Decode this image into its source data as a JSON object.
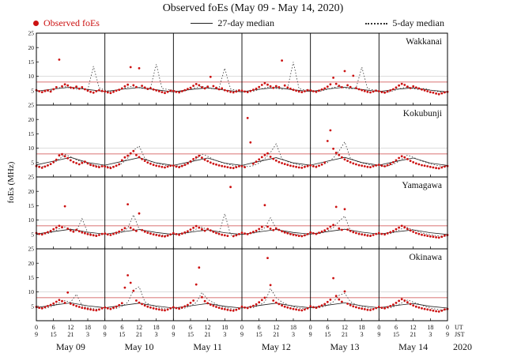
{
  "title": "Observed foEs (May 09 - May 14, 2020)",
  "ylabel": "foEs (MHz)",
  "year_label": "2020",
  "axis_right_labels": [
    "UT",
    "JST"
  ],
  "legend": {
    "observed": {
      "label": "Observed foEs",
      "color": "#cc1111"
    },
    "median27": {
      "label": "27-day median"
    },
    "median5": {
      "label": "5-day median"
    }
  },
  "chart_data": {
    "type": "scatter",
    "x_unit": "hours UT from May 09 2020 00:00",
    "x_range": [
      0,
      144
    ],
    "ylim": [
      0,
      25
    ],
    "y_ticks": [
      5,
      10,
      15,
      20,
      25
    ],
    "x_tick_step_hours": 6,
    "threshold_mhz": 8,
    "dot_color": "#cc1111",
    "grid_line_mhz": 10,
    "day_labels": [
      "May 09",
      "May 10",
      "May 11",
      "May 12",
      "May 13",
      "May 14"
    ],
    "ut_labels": [
      "0",
      "6",
      "12",
      "18",
      "0",
      "6",
      "12",
      "18",
      "0",
      "6",
      "12",
      "18",
      "0",
      "6",
      "12",
      "18",
      "0",
      "6",
      "12",
      "18",
      "0",
      "6",
      "12",
      "18",
      "0"
    ],
    "jst_labels": [
      "9",
      "15",
      "21",
      "3",
      "9",
      "15",
      "21",
      "3",
      "9",
      "15",
      "21",
      "3",
      "9",
      "15",
      "21",
      "3",
      "9",
      "15",
      "21",
      "3",
      "9",
      "15",
      "21",
      "3",
      "9"
    ],
    "stations": [
      {
        "name": "Wakkanai",
        "observed_step_hours": 1,
        "observed": [
          5.2,
          4.8,
          4.5,
          4.9,
          5.1,
          4.7,
          5.5,
          6.2,
          15.8,
          6.5,
          7.2,
          6.8,
          6.1,
          5.9,
          6.4,
          5.7,
          6.2,
          5.5,
          5.0,
          4.6,
          4.3,
          4.8,
          5.2,
          4.9,
          4.7,
          4.4,
          4.2,
          4.6,
          5.0,
          5.3,
          5.8,
          6.5,
          7.1,
          13.2,
          6.9,
          6.3,
          12.8,
          6.7,
          6.1,
          5.6,
          5.9,
          5.4,
          5.1,
          4.8,
          4.5,
          4.2,
          4.6,
          5.0,
          4.9,
          4.6,
          4.4,
          4.8,
          5.2,
          5.6,
          6.0,
          6.7,
          7.3,
          6.9,
          6.2,
          5.8,
          6.4,
          9.8,
          6.6,
          6.0,
          5.5,
          5.8,
          5.2,
          4.9,
          4.6,
          4.4,
          4.7,
          5.1,
          5.0,
          4.7,
          4.5,
          4.9,
          5.3,
          5.7,
          6.3,
          7.0,
          7.6,
          7.1,
          6.5,
          6.0,
          6.6,
          6.2,
          15.5,
          6.8,
          6.1,
          5.7,
          5.3,
          5.0,
          4.7,
          4.5,
          4.8,
          5.2,
          5.1,
          4.8,
          4.6,
          5.0,
          5.4,
          5.8,
          6.4,
          7.2,
          9.5,
          7.4,
          6.7,
          6.2,
          11.8,
          6.9,
          6.3,
          10.2,
          5.9,
          5.5,
          5.2,
          4.9,
          4.6,
          4.4,
          4.7,
          5.0,
          4.8,
          4.5,
          4.3,
          4.7,
          5.1,
          5.5,
          6.1,
          6.8,
          7.4,
          7.0,
          6.4,
          5.9,
          6.5,
          6.1,
          5.8,
          5.4,
          5.1,
          4.8,
          4.5,
          4.3,
          4.0,
          3.8,
          4.1,
          4.4,
          4.6
        ],
        "median27_step_hours": 6,
        "median27": [
          4.8,
          5.6,
          6.2,
          5.4,
          4.7,
          5.5,
          6.1,
          5.3,
          4.6,
          5.4,
          6.0,
          5.2,
          4.6,
          5.5,
          6.1,
          5.3,
          4.7,
          5.6,
          6.2,
          5.4,
          4.7,
          5.5,
          6.0,
          5.2,
          4.6
        ],
        "median5_step_hours": 2,
        "median5": [
          5.0,
          4.6,
          4.8,
          5.4,
          6.0,
          6.4,
          5.8,
          5.5,
          5.9,
          5.3,
          13.5,
          6.0,
          5.2,
          4.8,
          5.0,
          5.6,
          6.2,
          6.6,
          6.0,
          5.7,
          6.1,
          14.2,
          5.8,
          5.4,
          5.1,
          4.7,
          4.9,
          5.5,
          6.1,
          6.5,
          5.9,
          5.6,
          6.0,
          12.8,
          5.6,
          5.2,
          5.0,
          4.6,
          4.8,
          5.4,
          6.0,
          6.4,
          5.8,
          5.5,
          5.9,
          15.0,
          5.7,
          5.3,
          5.1,
          4.7,
          4.9,
          5.5,
          6.1,
          6.5,
          5.9,
          5.6,
          6.0,
          13.2,
          5.7,
          5.3,
          4.9,
          4.5,
          4.7,
          5.3,
          5.9,
          6.3,
          5.7,
          5.4,
          5.8,
          5.2,
          4.8,
          4.4,
          4.6
        ]
      },
      {
        "name": "Kokubunji",
        "observed_step_hours": 1,
        "observed": [
          3.8,
          3.5,
          3.2,
          3.6,
          4.0,
          4.5,
          5.2,
          6.0,
          7.5,
          7.9,
          7.2,
          6.5,
          5.8,
          5.2,
          4.8,
          4.4,
          4.9,
          5.3,
          4.7,
          4.2,
          3.9,
          3.6,
          3.4,
          3.7,
          3.6,
          3.3,
          3.1,
          3.5,
          3.9,
          4.4,
          5.8,
          6.8,
          7.4,
          8.2,
          9.0,
          7.6,
          6.9,
          6.2,
          5.6,
          5.0,
          4.6,
          4.2,
          3.9,
          3.7,
          3.5,
          3.3,
          3.6,
          3.9,
          3.9,
          3.6,
          3.4,
          3.8,
          4.2,
          4.7,
          5.4,
          6.2,
          6.8,
          7.4,
          6.7,
          6.0,
          5.5,
          5.0,
          4.6,
          4.3,
          4.0,
          3.8,
          3.6,
          3.4,
          3.2,
          3.1,
          3.4,
          3.7,
          3.7,
          3.4,
          20.5,
          12.0,
          4.6,
          5.3,
          6.1,
          6.9,
          7.6,
          8.2,
          7.0,
          6.3,
          5.7,
          5.2,
          4.8,
          4.5,
          4.2,
          3.9,
          3.7,
          3.5,
          3.3,
          3.2,
          3.5,
          3.8,
          4.0,
          3.7,
          3.5,
          3.9,
          4.3,
          5.0,
          12.5,
          16.2,
          9.8,
          8.4,
          7.6,
          6.8,
          6.1,
          5.6,
          5.1,
          4.7,
          4.4,
          4.1,
          3.9,
          3.7,
          3.5,
          3.4,
          3.7,
          4.0,
          4.2,
          3.9,
          3.7,
          4.1,
          4.5,
          5.1,
          5.8,
          6.6,
          7.2,
          6.8,
          6.2,
          5.6,
          5.1,
          4.7,
          4.4,
          4.1,
          3.9,
          3.7,
          3.5,
          3.3,
          3.1,
          3.0,
          3.3,
          3.6,
          3.8
        ],
        "median27_step_hours": 6,
        "median27": [
          4.2,
          5.5,
          6.8,
          5.0,
          4.1,
          5.4,
          6.7,
          4.9,
          4.0,
          5.3,
          6.6,
          4.8,
          4.0,
          5.4,
          6.7,
          4.9,
          4.1,
          5.5,
          6.8,
          5.0,
          4.1,
          5.4,
          6.6,
          4.8,
          4.0
        ],
        "median5_step_hours": 2,
        "median5": [
          4.0,
          3.6,
          3.9,
          4.8,
          6.2,
          7.8,
          7.0,
          6.0,
          5.2,
          4.6,
          4.2,
          3.8,
          3.9,
          3.5,
          3.8,
          4.7,
          6.5,
          9.2,
          10.8,
          6.4,
          5.4,
          4.8,
          4.3,
          3.9,
          4.1,
          3.7,
          4.0,
          4.9,
          6.3,
          8.0,
          7.2,
          6.1,
          5.3,
          4.7,
          4.2,
          3.8,
          4.0,
          3.6,
          3.9,
          4.8,
          6.4,
          8.5,
          11.5,
          6.3,
          5.3,
          4.7,
          4.2,
          3.8,
          4.2,
          3.8,
          4.1,
          5.0,
          6.6,
          9.0,
          12.2,
          6.5,
          5.5,
          4.9,
          4.4,
          4.0,
          4.1,
          3.7,
          4.0,
          4.9,
          6.2,
          7.6,
          6.8,
          5.9,
          5.1,
          4.5,
          4.1,
          3.7,
          3.9
        ]
      },
      {
        "name": "Yamagawa",
        "observed_step_hours": 1,
        "observed": [
          5.5,
          5.2,
          5.0,
          5.4,
          5.8,
          6.2,
          6.8,
          7.4,
          8.0,
          7.5,
          14.8,
          7.0,
          6.4,
          6.0,
          6.6,
          6.1,
          5.7,
          5.4,
          5.1,
          4.9,
          4.7,
          4.5,
          4.8,
          5.2,
          5.3,
          5.0,
          4.8,
          5.2,
          5.6,
          6.0,
          6.6,
          7.2,
          15.5,
          7.3,
          6.7,
          6.2,
          12.3,
          6.5,
          6.0,
          5.6,
          5.3,
          5.0,
          4.8,
          4.6,
          4.4,
          4.3,
          4.6,
          5.0,
          5.4,
          5.1,
          4.9,
          5.3,
          5.7,
          6.1,
          6.7,
          7.3,
          7.9,
          7.4,
          6.8,
          6.3,
          6.9,
          6.4,
          5.9,
          5.5,
          5.2,
          4.9,
          4.7,
          4.5,
          21.5,
          4.4,
          4.7,
          5.1,
          5.6,
          5.3,
          5.1,
          5.5,
          5.9,
          6.3,
          6.9,
          7.6,
          15.2,
          7.7,
          7.0,
          6.5,
          7.1,
          6.6,
          6.1,
          5.7,
          5.4,
          5.1,
          4.9,
          4.7,
          4.5,
          4.4,
          4.7,
          5.1,
          5.7,
          5.4,
          5.2,
          5.6,
          6.0,
          6.4,
          7.0,
          7.7,
          8.3,
          14.6,
          7.1,
          6.6,
          13.8,
          6.7,
          6.2,
          5.8,
          5.5,
          5.2,
          5.0,
          4.8,
          4.6,
          4.5,
          4.8,
          5.2,
          5.5,
          5.2,
          5.0,
          5.4,
          5.8,
          6.2,
          6.8,
          7.4,
          8.0,
          7.5,
          6.9,
          6.4,
          5.9,
          5.5,
          5.2,
          4.9,
          4.7,
          4.5,
          4.3,
          4.2,
          4.0,
          3.9,
          4.2,
          4.6,
          4.8
        ],
        "median27_step_hours": 6,
        "median27": [
          5.2,
          6.0,
          6.8,
          5.8,
          5.1,
          5.9,
          6.7,
          5.7,
          5.0,
          5.8,
          6.6,
          5.6,
          5.0,
          5.9,
          6.7,
          5.7,
          5.1,
          6.0,
          6.8,
          5.8,
          5.1,
          5.9,
          6.6,
          5.6,
          5.0
        ],
        "median5_step_hours": 2,
        "median5": [
          5.4,
          5.0,
          5.3,
          6.0,
          7.0,
          7.6,
          6.8,
          6.2,
          10.5,
          5.6,
          5.0,
          4.7,
          5.2,
          4.8,
          5.1,
          5.8,
          7.2,
          11.8,
          6.9,
          6.1,
          5.5,
          5.1,
          4.8,
          4.5,
          5.3,
          4.9,
          5.2,
          5.9,
          6.9,
          7.5,
          6.7,
          6.0,
          5.4,
          12.2,
          4.9,
          4.6,
          5.5,
          5.1,
          5.4,
          6.1,
          7.3,
          10.8,
          7.0,
          6.2,
          5.6,
          5.2,
          4.9,
          4.6,
          5.6,
          5.2,
          5.5,
          6.2,
          7.4,
          9.6,
          11.4,
          6.3,
          5.7,
          5.3,
          5.0,
          4.7,
          5.4,
          5.0,
          5.3,
          6.0,
          7.0,
          7.4,
          6.6,
          5.9,
          5.3,
          4.9,
          4.6,
          4.3,
          4.5
        ]
      },
      {
        "name": "Okinawa",
        "observed_step_hours": 1,
        "observed": [
          4.8,
          4.5,
          4.3,
          4.7,
          5.1,
          5.5,
          6.0,
          6.6,
          7.2,
          6.8,
          6.2,
          9.8,
          5.9,
          5.5,
          5.1,
          4.8,
          4.5,
          4.3,
          4.1,
          3.9,
          3.7,
          3.6,
          3.9,
          4.3,
          4.6,
          4.3,
          4.1,
          4.5,
          4.9,
          5.4,
          6.1,
          11.5,
          15.8,
          13.2,
          10.4,
          7.0,
          6.3,
          5.8,
          5.3,
          4.9,
          4.6,
          4.3,
          4.1,
          3.9,
          3.7,
          3.6,
          3.9,
          4.3,
          4.7,
          4.4,
          4.2,
          4.6,
          5.0,
          5.5,
          6.2,
          7.0,
          12.6,
          18.5,
          8.2,
          6.8,
          6.1,
          5.6,
          5.2,
          4.8,
          4.5,
          4.2,
          4.0,
          3.8,
          3.6,
          3.5,
          3.8,
          4.2,
          4.9,
          4.6,
          4.4,
          4.8,
          5.2,
          5.7,
          6.4,
          7.2,
          8.0,
          21.8,
          12.4,
          7.0,
          6.3,
          5.8,
          5.3,
          4.9,
          4.6,
          4.3,
          4.1,
          3.9,
          3.7,
          3.6,
          3.9,
          4.3,
          5.0,
          4.7,
          4.5,
          4.9,
          5.3,
          5.8,
          6.5,
          7.3,
          14.8,
          8.6,
          7.4,
          6.6,
          10.2,
          5.9,
          5.4,
          5.0,
          4.7,
          4.4,
          4.2,
          4.0,
          3.8,
          3.7,
          4.0,
          4.4,
          4.8,
          4.5,
          4.3,
          4.7,
          5.1,
          5.6,
          6.2,
          6.9,
          7.5,
          7.0,
          6.4,
          5.8,
          5.3,
          4.9,
          4.6,
          4.3,
          4.1,
          3.9,
          3.7,
          3.5,
          3.3,
          3.2,
          3.5,
          3.9,
          4.1
        ],
        "median27_step_hours": 6,
        "median27": [
          4.6,
          5.4,
          6.2,
          5.2,
          4.5,
          5.3,
          6.1,
          5.1,
          4.4,
          5.2,
          6.0,
          5.0,
          4.4,
          5.3,
          6.1,
          5.1,
          4.5,
          5.4,
          6.2,
          5.2,
          4.5,
          5.3,
          6.0,
          5.0,
          4.4
        ],
        "median5_step_hours": 2,
        "median5": [
          4.6,
          4.2,
          4.5,
          5.2,
          6.2,
          7.0,
          6.4,
          9.2,
          5.2,
          4.6,
          4.2,
          3.9,
          4.4,
          4.0,
          4.3,
          5.0,
          6.4,
          10.6,
          11.8,
          6.6,
          5.4,
          4.8,
          4.3,
          4.0,
          4.5,
          4.1,
          4.4,
          5.1,
          6.3,
          9.8,
          7.4,
          6.3,
          5.3,
          4.7,
          4.2,
          3.9,
          4.7,
          4.3,
          4.6,
          5.3,
          6.5,
          11.2,
          8.0,
          6.5,
          5.5,
          4.9,
          4.4,
          4.1,
          4.8,
          4.4,
          4.7,
          5.4,
          6.6,
          8.8,
          9.6,
          6.6,
          5.6,
          5.0,
          4.5,
          4.2,
          4.6,
          4.2,
          4.5,
          5.2,
          6.2,
          7.2,
          6.5,
          5.8,
          5.0,
          4.4,
          4.0,
          3.7,
          3.9
        ]
      }
    ]
  }
}
